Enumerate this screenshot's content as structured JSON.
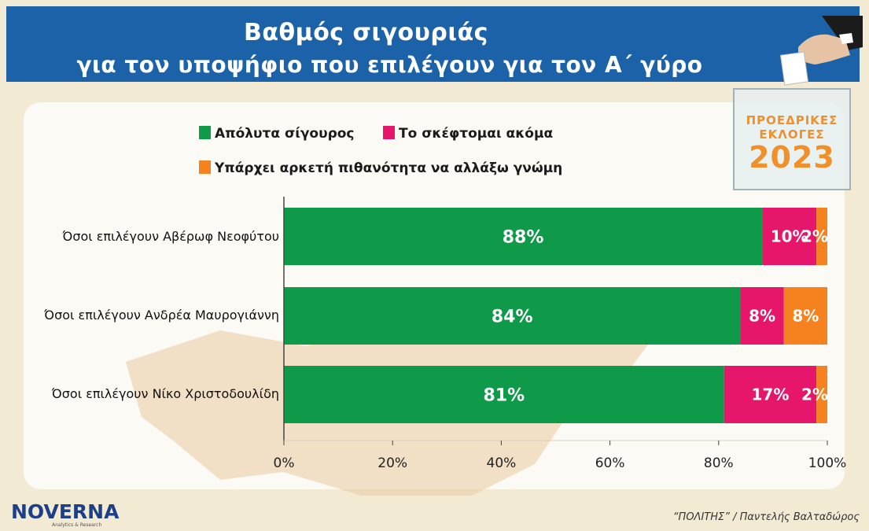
{
  "header": {
    "title_line1": "Βαθμός σιγουριάς",
    "title_line2": "για τον υποψήφιο που επιλέγουν για τον Α΄ γύρο"
  },
  "badge": {
    "line1": "ΠΡΟΕΔΡΙΚΕΣ",
    "line2": "ΕΚΛΟΓΕΣ",
    "year": "2023"
  },
  "logo": {
    "name": "NOVERNA",
    "tagline": "Analytics & Research"
  },
  "source": "“ΠΟΛΙΤΗΣ” / Παντελής Βαλταδώρος",
  "colors": {
    "header": "#1c62a8",
    "green": "#0e9a48",
    "pink": "#e6176b",
    "orange": "#f5821f"
  },
  "chart_data": {
    "type": "bar",
    "orientation": "horizontal",
    "stacked": true,
    "title": "Βαθμός σιγουριάς για τον υποψήφιο που επιλέγουν για τον Α΄ γύρο",
    "categories": [
      "Όσοι επιλέγουν Αβέρωφ Νεοφύτου",
      "Όσοι επιλέγουν Ανδρέα Μαυρογιάννη",
      "Όσοι επιλέγουν Νίκο Χριστοδουλίδη"
    ],
    "series": [
      {
        "name": "Απόλυτα σίγουρος",
        "color": "#0e9a48",
        "values": [
          88,
          84,
          81
        ],
        "labels": [
          "88%",
          "84%",
          "81%"
        ]
      },
      {
        "name": "Το σκέφτομαι ακόμα",
        "color": "#e6176b",
        "values": [
          10,
          8,
          17
        ],
        "labels": [
          "10%",
          "8%",
          "17%"
        ]
      },
      {
        "name": "Υπάρχει αρκετή πιθανότητα να αλλάξω γνώμη",
        "color": "#f5821f",
        "values": [
          2,
          8,
          2
        ],
        "labels": [
          "2%",
          "8%",
          "2%"
        ]
      }
    ],
    "xlim": [
      0,
      100
    ],
    "xticks": [
      "0%",
      "20%",
      "40%",
      "60%",
      "80%",
      "100%"
    ],
    "legend_position": "top",
    "grid": false
  }
}
